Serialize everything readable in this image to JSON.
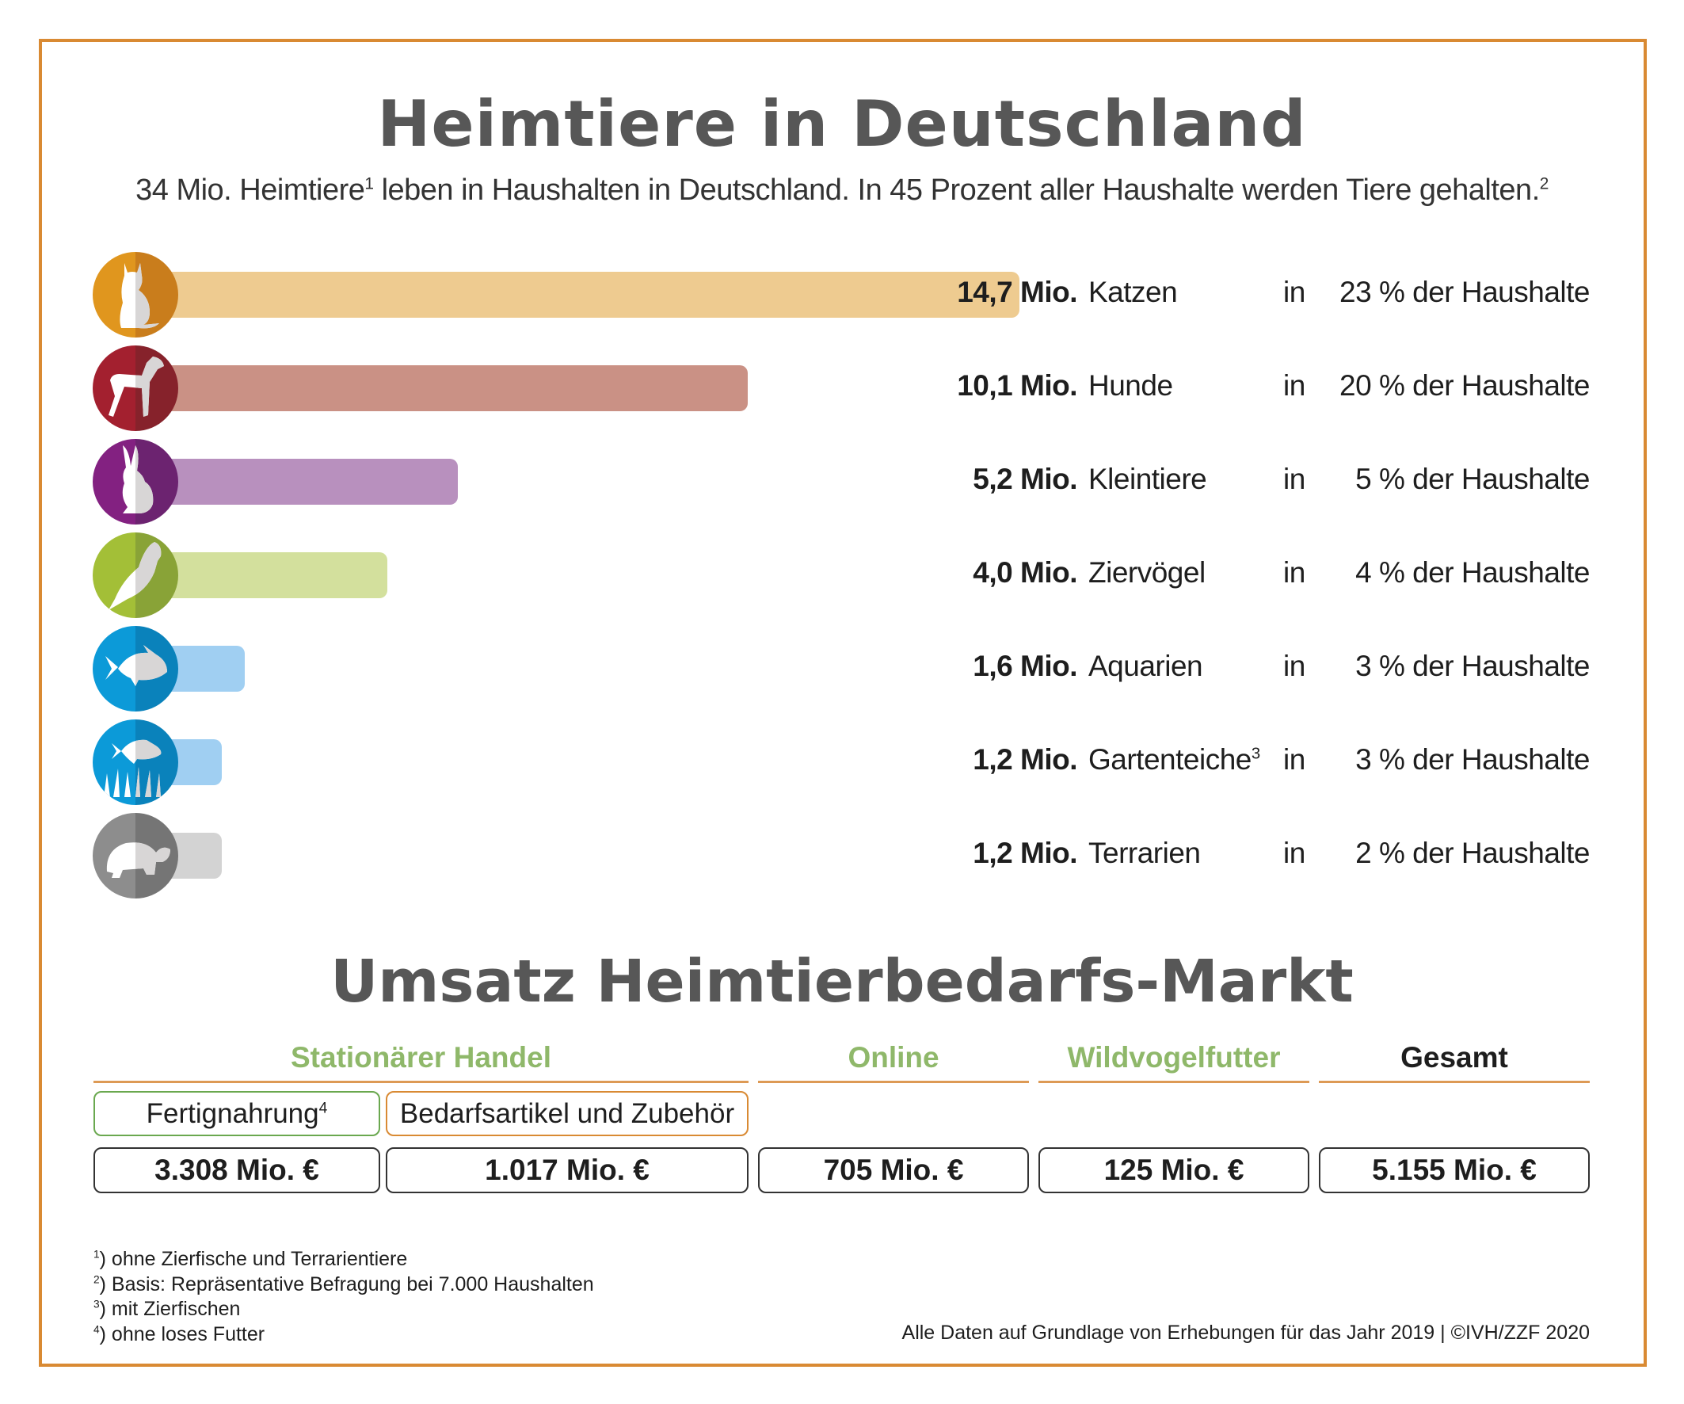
{
  "title": "Heimtiere in Deutschland",
  "subtitle": {
    "part1": "34 Mio. Heimtiere",
    "sup1": "1",
    "part2": " leben in Haushalten in Deutschland. In 45 Prozent aller Haushalte werden Tiere gehalten.",
    "sup2": "2"
  },
  "chart_data": {
    "type": "bar",
    "orientation": "horizontal",
    "unit": "Mio.",
    "categories": [
      "Katzen",
      "Hunde",
      "Kleintiere",
      "Ziervögel",
      "Aquarien",
      "Gartenteiche",
      "Terrarien"
    ],
    "values": [
      14.7,
      10.1,
      5.2,
      4.0,
      1.6,
      1.2,
      1.2
    ],
    "rows": [
      {
        "value_label": "14,7 Mio.",
        "name": "Katzen",
        "sup": "",
        "in": "in",
        "pct": "23 % der Haushalte",
        "icon": "cat-icon",
        "bar_color": "#eecb90",
        "icon_light": "#e0961e",
        "icon_dark": "#c97d1c"
      },
      {
        "value_label": "10,1 Mio.",
        "name": "Hunde",
        "sup": "",
        "in": "in",
        "pct": "20 % der Haushalte",
        "icon": "dog-icon",
        "bar_color": "#ca9185",
        "icon_light": "#a3202f",
        "icon_dark": "#86222b"
      },
      {
        "value_label": "5,2 Mio.",
        "name": "Kleintiere",
        "sup": "",
        "in": "in",
        "pct": "5 % der Haushalte",
        "icon": "rabbit-icon",
        "bar_color": "#b890be",
        "icon_light": "#832181",
        "icon_dark": "#6c2370"
      },
      {
        "value_label": "4,0 Mio.",
        "name": "Ziervögel",
        "sup": "",
        "in": "in",
        "pct": "4 % der Haushalte",
        "icon": "parrot-icon",
        "bar_color": "#d3e09d",
        "icon_light": "#a3bf37",
        "icon_dark": "#89a337"
      },
      {
        "value_label": "1,6 Mio.",
        "name": "Aquarien",
        "sup": "",
        "in": "in",
        "pct": "3 % der Haushalte",
        "icon": "fish-icon",
        "bar_color": "#a0cff2",
        "icon_light": "#0c9ad8",
        "icon_dark": "#0a82bb"
      },
      {
        "value_label": "1,2 Mio.",
        "name": "Gartenteiche",
        "sup": "3",
        "in": "in",
        "pct": "3 % der Haushalte",
        "icon": "pond-fish-icon",
        "bar_color": "#a0cff2",
        "icon_light": "#0c9ad8",
        "icon_dark": "#0a82bb"
      },
      {
        "value_label": "1,2 Mio.",
        "name": "Terrarien",
        "sup": "",
        "in": "in",
        "pct": "2 % der Haushalte",
        "icon": "turtle-icon",
        "bar_color": "#d3d3d3",
        "icon_light": "#8d8d8d",
        "icon_dark": "#757575"
      }
    ]
  },
  "market": {
    "title": "Umsatz Heimtierbedarfs-Markt",
    "columns": [
      {
        "label": "Stationärer Handel",
        "color": "#8fb86a"
      },
      {
        "label": "Online",
        "color": "#8fb86a"
      },
      {
        "label": "Wildvogelfutter",
        "color": "#8fb86a"
      },
      {
        "label": "Gesamt",
        "color": "#1e1e1e"
      }
    ],
    "subcategories": [
      {
        "label": "Fertignahrung",
        "sup": "4",
        "border": "#6aa84f"
      },
      {
        "label": "Bedarfsartikel und Zubehör",
        "sup": "",
        "border": "#d98a33"
      }
    ],
    "values": [
      "3.308 Mio. €",
      "1.017 Mio. €",
      "705 Mio. €",
      "125 Mio. €",
      "5.155 Mio. €"
    ]
  },
  "footnotes": [
    {
      "n": "1",
      "text": ") ohne Zierfische und Terrarientiere"
    },
    {
      "n": "2",
      "text": ") Basis: Repräsentative Befragung bei 7.000 Haushalten"
    },
    {
      "n": "3",
      "text": ") mit Zierfischen"
    },
    {
      "n": "4",
      "text": ") ohne loses Futter"
    }
  ],
  "source": "Alle Daten auf Grundlage von Erhebungen für das Jahr 2019 | ©IVH/ZZF 2020",
  "colors": {
    "frame": "#d98a33",
    "title": "#575757"
  }
}
